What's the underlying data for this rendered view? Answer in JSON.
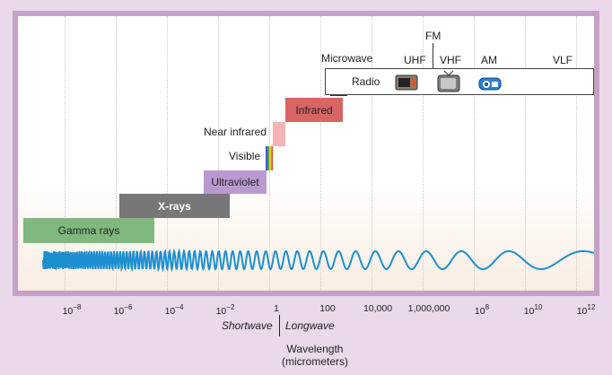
{
  "bands": {
    "gamma": "Gamma rays",
    "xrays": "X-rays",
    "ultraviolet": "Ultraviolet",
    "visible": "Visible",
    "near_infrared": "Near infrared",
    "infrared": "Infrared",
    "microwave": "Microwave",
    "radio": "Radio"
  },
  "radio_labels": {
    "uhf": "UHF",
    "fm": "FM",
    "vhf": "VHF",
    "am": "AM",
    "vlf": "VLF"
  },
  "ticks": [
    {
      "base": "10",
      "exp": "−8"
    },
    {
      "base": "10",
      "exp": "−6"
    },
    {
      "base": "10",
      "exp": "−4"
    },
    {
      "base": "10",
      "exp": "−2"
    },
    {
      "base": "1",
      "exp": ""
    },
    {
      "base": "100",
      "exp": ""
    },
    {
      "base": "10,000",
      "exp": ""
    },
    {
      "base": "1,000,000",
      "exp": ""
    },
    {
      "base": "10",
      "exp": "8"
    },
    {
      "base": "10",
      "exp": "10"
    },
    {
      "base": "10",
      "exp": "12"
    }
  ],
  "axis": {
    "shortwave": "Shortwave",
    "longwave": "Longwave",
    "wavelength_line1": "Wavelength",
    "wavelength_line2": "(micrometers)"
  },
  "colors": {
    "frame": "#c5a2c5",
    "gamma": "#7fb97f",
    "xrays": "#777777",
    "ultraviolet": "#b99ad0",
    "near_infrared": "#f2b4b4",
    "infrared": "#d96464",
    "microwave": "#0c3a7a",
    "wave": "#1c8fd0"
  }
}
